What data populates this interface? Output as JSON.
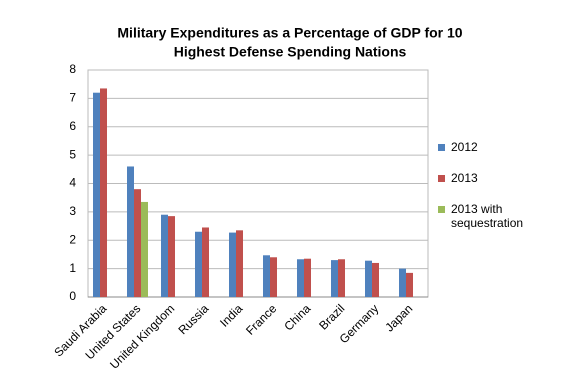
{
  "chart_data": {
    "type": "bar",
    "title": [
      "Military Expenditures as a Percentage of GDP for 10",
      "Highest Defense Spending Nations"
    ],
    "categories": [
      "Saudi Arabia",
      "United States",
      "United Kingdom",
      "Russia",
      "India",
      "France",
      "China",
      "Brazil",
      "Germany",
      "Japan"
    ],
    "series": [
      {
        "name": "2012",
        "color": "#4f81bd",
        "values": [
          7.2,
          4.6,
          2.9,
          2.3,
          2.27,
          1.47,
          1.33,
          1.3,
          1.28,
          1.0
        ]
      },
      {
        "name": "2013",
        "color": "#c0504d",
        "values": [
          7.35,
          3.8,
          2.85,
          2.45,
          2.35,
          1.4,
          1.35,
          1.33,
          1.2,
          0.85
        ]
      },
      {
        "name": "2013 with sequestration",
        "color": "#9bbb59",
        "values": [
          null,
          3.35,
          null,
          null,
          null,
          null,
          null,
          null,
          null,
          null
        ]
      }
    ],
    "ylim": [
      0,
      8
    ],
    "yticks": [
      0,
      1,
      2,
      3,
      4,
      5,
      6,
      7,
      8
    ],
    "grid": true,
    "legend": "right"
  }
}
